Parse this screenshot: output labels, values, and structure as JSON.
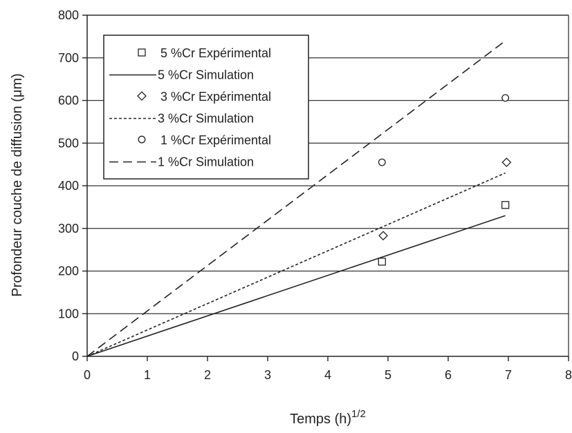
{
  "chart_data": {
    "type": "line",
    "xlabel": "Temps (h)",
    "xlabel_exponent": "1/2",
    "ylabel": "Profondeur couche de diffusion (μm)",
    "xlim": [
      0,
      8
    ],
    "ylim": [
      0,
      800
    ],
    "x_ticks": [
      0,
      1,
      2,
      3,
      4,
      5,
      6,
      7,
      8
    ],
    "y_ticks": [
      0,
      100,
      200,
      300,
      400,
      500,
      600,
      700,
      800
    ],
    "grid": "horizontal",
    "legend_position": "top-left",
    "series": [
      {
        "name": "5 %Cr Expérimental",
        "kind": "scatter",
        "marker": "square",
        "points": [
          [
            4.9,
            222
          ],
          [
            6.95,
            355
          ]
        ]
      },
      {
        "name": "5 %Cr Simulation",
        "kind": "line",
        "line_style": "solid",
        "points": [
          [
            0,
            0
          ],
          [
            6.95,
            330
          ]
        ]
      },
      {
        "name": "3 %Cr Expérimental",
        "kind": "scatter",
        "marker": "diamond",
        "points": [
          [
            4.92,
            283
          ],
          [
            6.97,
            455
          ]
        ]
      },
      {
        "name": "3 %Cr Simulation",
        "kind": "line",
        "line_style": "dotted",
        "points": [
          [
            0,
            0
          ],
          [
            6.95,
            430
          ]
        ]
      },
      {
        "name": "1 %Cr Expérimental",
        "kind": "scatter",
        "marker": "circle",
        "points": [
          [
            4.9,
            455
          ],
          [
            6.95,
            606
          ]
        ]
      },
      {
        "name": "1 %Cr Simulation",
        "kind": "line",
        "line_style": "dashed",
        "points": [
          [
            0,
            0
          ],
          [
            6.95,
            740
          ]
        ]
      }
    ]
  }
}
